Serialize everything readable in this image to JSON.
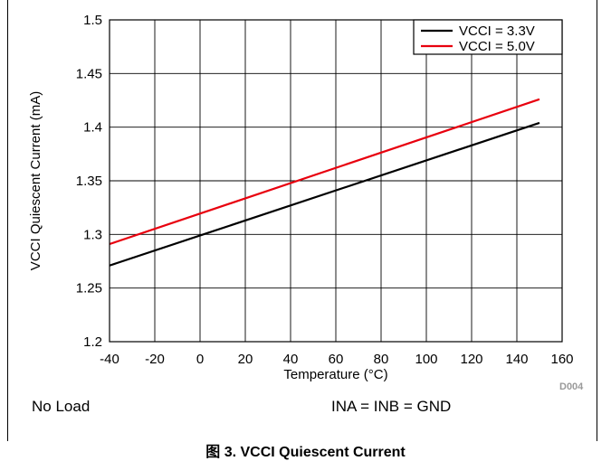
{
  "chart_data": {
    "type": "line",
    "xlabel": "Temperature (°C)",
    "ylabel": "VCCI Quiescent Current (mA)",
    "xlim": [
      -40,
      160
    ],
    "ylim": [
      1.2,
      1.5
    ],
    "x_ticks": [
      -40,
      -20,
      0,
      20,
      40,
      60,
      80,
      100,
      120,
      140,
      160
    ],
    "y_ticks": [
      1.2,
      1.25,
      1.3,
      1.35,
      1.4,
      1.45,
      1.5
    ],
    "x_tick_labels": [
      "-40",
      "-20",
      "0",
      "20",
      "40",
      "60",
      "80",
      "100",
      "120",
      "140",
      "160"
    ],
    "y_tick_labels": [
      "1.2",
      "1.25",
      "1.3",
      "1.35",
      "1.4",
      "1.45",
      "1.5"
    ],
    "grid": true,
    "legend_position": "top-right",
    "series": [
      {
        "name": "VCCI = 3.3V",
        "color": "#000000",
        "x": [
          -40,
          150
        ],
        "y": [
          1.271,
          1.404
        ]
      },
      {
        "name": "VCCI = 5.0V",
        "color": "#e8000e",
        "x": [
          -40,
          150
        ],
        "y": [
          1.291,
          1.426
        ]
      }
    ]
  },
  "notes": {
    "load": "No Load",
    "inputs": "INA = INB = GND",
    "code": "D004"
  },
  "caption": "图 3.  VCCI Quiescent Current"
}
